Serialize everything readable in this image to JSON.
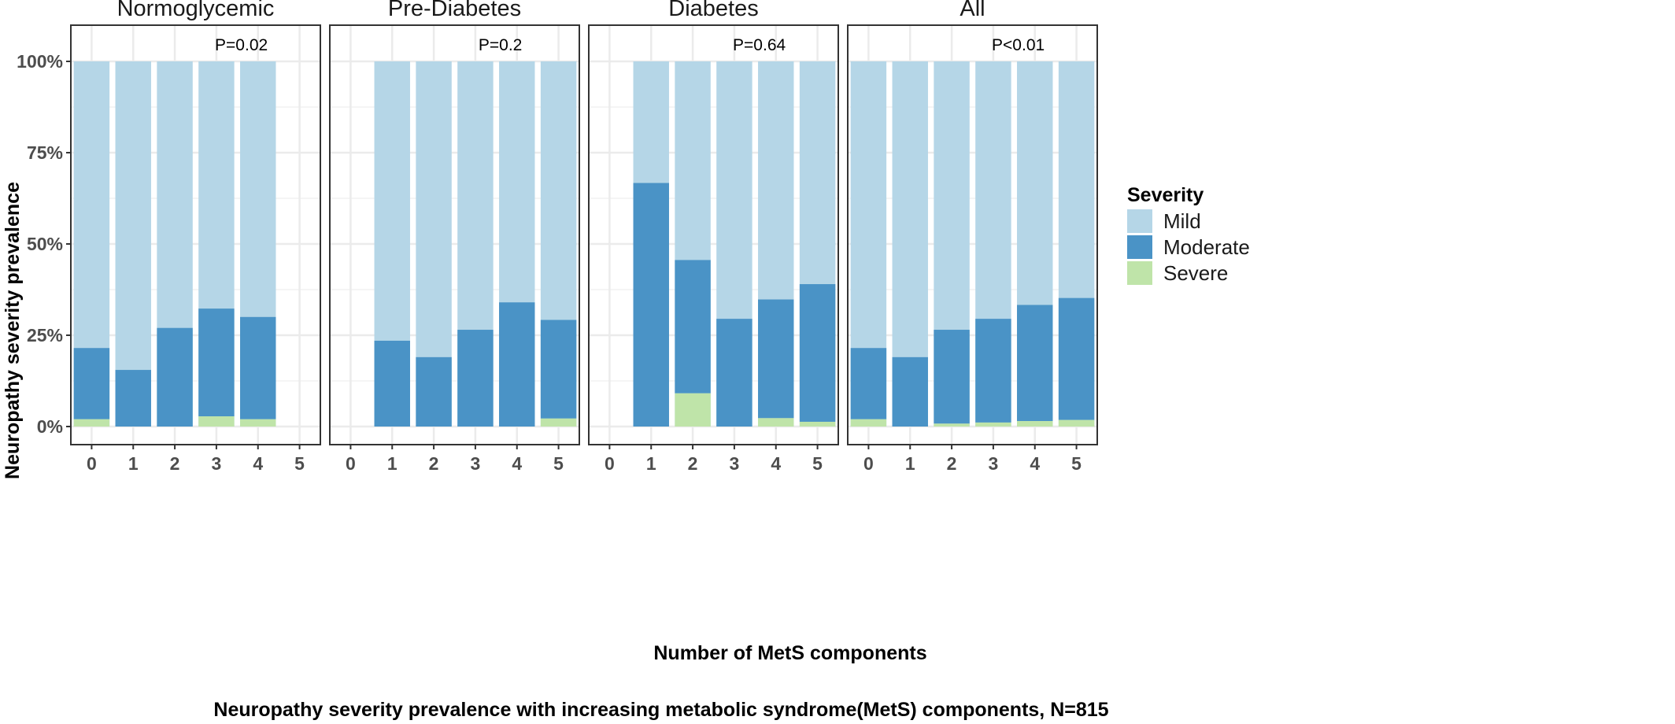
{
  "chart_data": {
    "type": "bar",
    "stacked": true,
    "percent_axis": true,
    "ylabel": "Neuropathy severity prevalence",
    "xlabel": "Number of MetS components",
    "caption": "Neuropathy severity prevalence with increasing metabolic syndrome(MetS) components, N=815",
    "ylim": [
      0,
      110
    ],
    "yticks": [
      0,
      25,
      50,
      75,
      100
    ],
    "ytick_labels": [
      "0%",
      "25%",
      "50%",
      "75%",
      "100%"
    ],
    "categories": [
      "0",
      "1",
      "2",
      "3",
      "4",
      "5"
    ],
    "grid": true,
    "legend": {
      "title": "Severity",
      "position": "right",
      "items": [
        {
          "name": "Mild",
          "color": "#b5d6e7"
        },
        {
          "name": "Moderate",
          "color": "#4a93c6"
        },
        {
          "name": "Severe",
          "color": "#bfe4a9"
        }
      ]
    },
    "panels": [
      {
        "title": "Normoglycemic",
        "pvalue": "P=0.02",
        "bars": [
          {
            "x": "0",
            "severe": 2,
            "moderate": 19.5
          },
          {
            "x": "1",
            "severe": 0,
            "moderate": 15.5
          },
          {
            "x": "2",
            "severe": 0,
            "moderate": 27
          },
          {
            "x": "3",
            "severe": 2.8,
            "moderate": 29.5
          },
          {
            "x": "4",
            "severe": 2,
            "moderate": 28
          }
        ]
      },
      {
        "title": "Pre-Diabetes",
        "pvalue": "P=0.2",
        "bars": [
          {
            "x": "1",
            "severe": 0,
            "moderate": 23.5
          },
          {
            "x": "2",
            "severe": 0,
            "moderate": 19
          },
          {
            "x": "3",
            "severe": 0,
            "moderate": 26.5
          },
          {
            "x": "4",
            "severe": 0,
            "moderate": 34
          },
          {
            "x": "5",
            "severe": 2.2,
            "moderate": 27
          }
        ]
      },
      {
        "title": "Diabetes",
        "pvalue": "P=0.64",
        "bars": [
          {
            "x": "1",
            "severe": 0,
            "moderate": 66.7
          },
          {
            "x": "2",
            "severe": 9.1,
            "moderate": 36.5
          },
          {
            "x": "3",
            "severe": 0,
            "moderate": 29.5
          },
          {
            "x": "4",
            "severe": 2.3,
            "moderate": 32.5
          },
          {
            "x": "5",
            "severe": 1.3,
            "moderate": 37.7
          }
        ]
      },
      {
        "title": "All",
        "pvalue": "P<0.01",
        "bars": [
          {
            "x": "0",
            "severe": 2,
            "moderate": 19.5
          },
          {
            "x": "1",
            "severe": 0,
            "moderate": 19
          },
          {
            "x": "2",
            "severe": 0.8,
            "moderate": 25.7
          },
          {
            "x": "3",
            "severe": 1.1,
            "moderate": 28.4
          },
          {
            "x": "4",
            "severe": 1.5,
            "moderate": 31.8
          },
          {
            "x": "5",
            "severe": 1.8,
            "moderate": 33.4
          }
        ]
      }
    ]
  }
}
